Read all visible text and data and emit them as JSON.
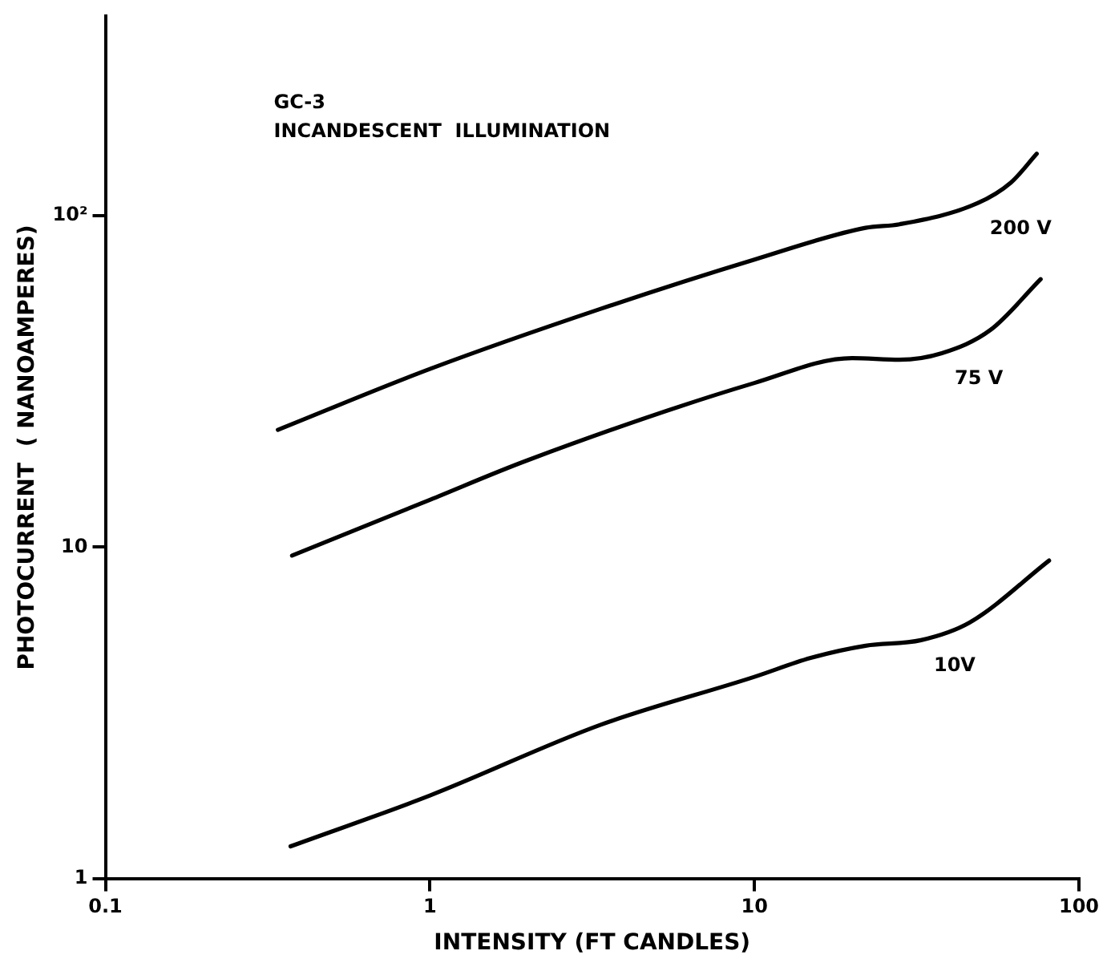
{
  "chart_data": {
    "type": "line",
    "xlabel": "INTENSITY (FT CANDLES)",
    "ylabel": "PHOTOCURRENT  ( NANOAMPERES)",
    "annotations": [
      "GC-3",
      "INCANDESCENT  ILLUMINATION"
    ],
    "log": "xy",
    "xlim": [
      0.1,
      100
    ],
    "ylim": [
      1,
      400
    ],
    "xticks": [
      0.1,
      1,
      10,
      100
    ],
    "yticks": [
      1,
      10,
      {
        "value": 100,
        "label": "10²"
      }
    ],
    "grid": false,
    "legend": false,
    "marker": "none",
    "line_style": "solid",
    "series": [
      {
        "name": "200 V",
        "color": "#000000",
        "x": [
          0.34,
          1,
          3.36,
          10,
          22,
          28,
          48.5,
          61.7,
          74.1
        ],
        "values": [
          22.6,
          34.5,
          52.4,
          73.8,
          92,
          94.3,
          109,
          126,
          154
        ]
      },
      {
        "name": "75 V",
        "color": "#000000",
        "x": [
          0.376,
          1,
          2.0,
          10,
          20,
          28,
          37.8,
          53.3,
          76.2
        ],
        "values": [
          9.43,
          13.9,
          18.3,
          31.3,
          37.2,
          36.8,
          38.5,
          45.2,
          64.4
        ]
      },
      {
        "name": "10V",
        "color": "#000000",
        "x": [
          0.372,
          1,
          3.36,
          10,
          14.9,
          22,
          32.6,
          46,
          80.9
        ],
        "values": [
          1.25,
          1.78,
          2.91,
          4.06,
          4.63,
          5.04,
          5.24,
          5.92,
          9.11
        ]
      }
    ]
  }
}
